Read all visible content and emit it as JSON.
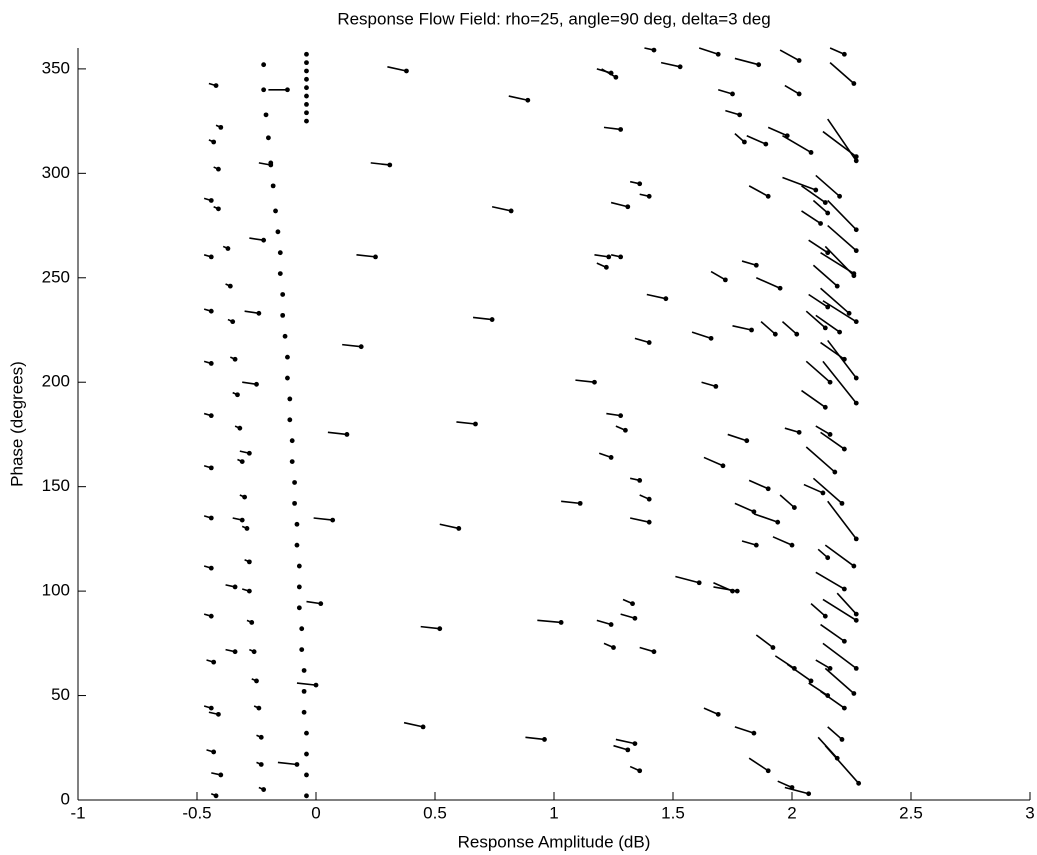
{
  "chart_data": {
    "type": "quiver",
    "title": "Response Flow Field: rho=25, angle=90 deg, delta=3 deg",
    "x_label": "Response Amplitude (dB)",
    "y_label": "Phase (degrees)",
    "xlim": [
      -1,
      3
    ],
    "xticks": [
      -1,
      -0.5,
      0,
      0.5,
      1,
      1.5,
      2,
      2.5,
      3
    ],
    "ylim": [
      0,
      360
    ],
    "yticks": [
      0,
      50,
      100,
      150,
      200,
      250,
      300,
      350
    ],
    "color": "#000000",
    "series": [
      {
        "x": [
          -0.04,
          -0.04,
          -0.04,
          -0.04,
          -0.05,
          -0.05,
          -0.05,
          -0.06,
          -0.06,
          -0.07,
          -0.07,
          -0.07,
          -0.08,
          -0.08,
          -0.09,
          -0.09,
          -0.1,
          -0.1,
          -0.11,
          -0.11,
          -0.12,
          -0.12,
          -0.13,
          -0.14,
          -0.14,
          -0.15,
          -0.15,
          -0.16,
          -0.17,
          -0.18,
          -0.19,
          -0.2,
          -0.21,
          -0.22,
          -0.22,
          -0.04,
          -0.04,
          -0.04,
          -0.04,
          -0.04,
          -0.04,
          -0.04,
          -0.04,
          -0.04
        ],
        "y": [
          2,
          12,
          22,
          32,
          42,
          52,
          62,
          72,
          82,
          92,
          102,
          112,
          122,
          132,
          142,
          152,
          162,
          172,
          182,
          192,
          202,
          212,
          222,
          232,
          242,
          252,
          262,
          272,
          282,
          294,
          305,
          317,
          328,
          340,
          352,
          325,
          329,
          333,
          337,
          341,
          345,
          349,
          353,
          357
        ]
      },
      {
        "x": [
          -0.42,
          -0.4,
          -0.43,
          -0.41,
          -0.44,
          -0.41,
          -0.37,
          -0.44,
          -0.36,
          -0.44,
          -0.35,
          -0.44,
          -0.34,
          -0.33,
          -0.44,
          -0.32,
          -0.28,
          -0.44,
          -0.31,
          -0.44,
          -0.3,
          -0.31,
          -0.29,
          -0.28,
          -0.44,
          -0.34,
          -0.28,
          -0.27,
          -0.44,
          -0.34,
          -0.26,
          -0.43,
          -0.25,
          -0.44,
          -0.41,
          -0.24,
          -0.23,
          -0.43,
          -0.23,
          -0.4,
          -0.42,
          -0.22,
          -0.24,
          -0.25,
          -0.22,
          -0.19,
          -0.12,
          -0.08,
          0,
          0.02,
          0.38,
          0.31,
          0.25,
          0.19,
          0.13,
          0.07,
          0.89,
          0.82,
          0.74,
          0.67,
          0.6,
          0.52,
          0.45,
          0.96,
          1.03,
          1.11,
          1.17,
          1.22,
          1.23,
          1.26,
          1.24,
          1.28,
          1.42,
          1.53,
          1.36,
          1.4,
          1.31,
          1.28,
          1.47,
          1.4,
          1.28,
          1.3,
          1.24,
          1.36,
          1.4,
          1.4,
          1.33,
          1.34,
          1.24,
          1.42,
          1.25,
          1.34,
          1.31,
          1.36,
          1.61,
          1.75,
          1.77,
          1.69,
          1.68,
          1.66,
          1.72,
          1.69,
          1.75,
          1.78,
          1.8,
          1.86,
          1.89,
          1.9,
          1.85,
          1.83,
          1.81,
          1.71,
          1.9,
          1.94,
          1.84,
          1.85,
          1.95,
          2.03,
          2.03,
          1.98,
          2.08,
          2.03,
          2.0,
          2.01,
          1.92,
          2.01,
          2.08,
          1.84,
          1.9,
          2.0,
          2.07,
          2.22,
          2.26,
          2.27,
          2.27,
          2.2,
          2.27,
          2.27,
          2.26,
          2.26,
          2.24,
          2.27,
          2.27,
          2.27,
          2.22,
          2.2,
          2.14,
          2.15,
          2.19,
          2.1,
          2.15,
          2.16,
          2.14,
          2.22,
          2.16,
          2.18,
          2.27,
          2.26,
          2.22,
          2.27,
          2.27,
          2.22,
          2.27,
          2.26,
          2.22,
          2.21,
          2.28,
          2.19,
          2.15,
          2.14,
          2.16,
          2.15,
          2.13,
          2.15,
          2.14,
          2.02,
          1.93,
          2.12,
          2.21
        ],
        "y": [
          342,
          322,
          315,
          302,
          287,
          283,
          264,
          260,
          246,
          234,
          229,
          209,
          211,
          194,
          184,
          178,
          166,
          159,
          162,
          135,
          145,
          134,
          130,
          114,
          111,
          102,
          100,
          85,
          88,
          71,
          71,
          66,
          57,
          44,
          41,
          44,
          30,
          23,
          17,
          12,
          2,
          5,
          233,
          199,
          268,
          304,
          340,
          17,
          55,
          94,
          349,
          304,
          260,
          217,
          175,
          134,
          335,
          282,
          230,
          180,
          130,
          82,
          35,
          29,
          85,
          142,
          200,
          255,
          260,
          346,
          348,
          321,
          359,
          351,
          295,
          289,
          284,
          260,
          240,
          219,
          184,
          177,
          164,
          153,
          144,
          133,
          94,
          87,
          84,
          71,
          73,
          27,
          24,
          14,
          104,
          100,
          100,
          41,
          198,
          221,
          249,
          357,
          338,
          328,
          315,
          352,
          314,
          289,
          256,
          225,
          172,
          160,
          149,
          133,
          138,
          122,
          245,
          354,
          338,
          318,
          310,
          176,
          122,
          140,
          73,
          63,
          57,
          32,
          14,
          6,
          3,
          357,
          343,
          306,
          308,
          289,
          273,
          263,
          251,
          252,
          233,
          229,
          202,
          190,
          211,
          224,
          286,
          262,
          246,
          292,
          281,
          200,
          188,
          168,
          175,
          157,
          125,
          112,
          101,
          89,
          86,
          76,
          63,
          51,
          44,
          29,
          8,
          20,
          50,
          88,
          63,
          116,
          147,
          236,
          226,
          223,
          223,
          276,
          142
        ],
        "u": [
          0.03,
          0.02,
          0.02,
          0.02,
          0.03,
          0.02,
          0.02,
          0.03,
          0.02,
          0.03,
          0.02,
          0.03,
          0.02,
          0.02,
          0.03,
          0.02,
          0.04,
          0.03,
          0.02,
          0.03,
          0.02,
          0.04,
          0.02,
          0.02,
          0.03,
          0.04,
          0.03,
          0.02,
          0.03,
          0.04,
          0.02,
          0.03,
          0.02,
          0.03,
          0.04,
          0.02,
          0.02,
          0.03,
          0.02,
          0.04,
          0.02,
          0.02,
          0.06,
          0.06,
          0.06,
          0.05,
          0.08,
          0.08,
          0.08,
          0.06,
          0.08,
          0.08,
          0.08,
          0.08,
          0.08,
          0.08,
          0.08,
          0.08,
          0.08,
          0.08,
          0.08,
          0.08,
          0.08,
          0.08,
          0.1,
          0.08,
          0.08,
          0.04,
          0.06,
          0.06,
          0.06,
          0.07,
          0.04,
          0.08,
          0.04,
          0.04,
          0.07,
          0.04,
          0.08,
          0.06,
          0.06,
          0.04,
          0.05,
          0.04,
          0.04,
          0.08,
          0.04,
          0.06,
          0.06,
          0.06,
          0.04,
          0.08,
          0.06,
          0.04,
          0.1,
          0.08,
          0.1,
          0.06,
          0.06,
          0.08,
          0.06,
          0.08,
          0.06,
          0.06,
          0.04,
          0.1,
          0.08,
          0.08,
          0.06,
          0.08,
          0.08,
          0.08,
          0.08,
          0.1,
          0.08,
          0.06,
          0.1,
          0.08,
          0.06,
          0.08,
          0.12,
          0.06,
          0.08,
          0.06,
          0.07,
          0.08,
          0.1,
          0.08,
          0.08,
          0.06,
          0.1,
          0.06,
          0.1,
          0.12,
          0.14,
          0.1,
          0.12,
          0.12,
          0.12,
          0.14,
          0.12,
          0.14,
          0.12,
          0.14,
          0.1,
          0.1,
          0.1,
          0.08,
          0.1,
          0.14,
          0.06,
          0.1,
          0.1,
          0.1,
          0.06,
          0.12,
          0.12,
          0.12,
          0.12,
          0.08,
          0.14,
          0.1,
          0.14,
          0.12,
          0.1,
          0.06,
          0.14,
          0.08,
          0.08,
          0.06,
          0.06,
          0.04,
          0.08,
          0.08,
          0.08,
          0.06,
          0.06,
          0.08,
          0.12
        ],
        "v": [
          -1,
          -1,
          -1,
          -1,
          -1,
          -1,
          -1,
          -1,
          -1,
          -1,
          -1,
          -1,
          -1,
          -1,
          -1,
          -1,
          -1,
          -1,
          -1,
          -1,
          -1,
          -1,
          -1,
          -1,
          -1,
          -1,
          -1,
          -1,
          -1,
          -1,
          -1,
          -1,
          -1,
          -1,
          -1,
          -1,
          -1,
          -1,
          -1,
          -1,
          -1,
          -1,
          -1,
          -1,
          -1,
          -1,
          0,
          -1,
          -1,
          -1,
          -2,
          -1,
          -1,
          -1,
          -1,
          -1,
          -2,
          -2,
          -1,
          -1,
          -2,
          -1,
          -2,
          -1,
          -1,
          -1,
          -1,
          -2,
          -1,
          -4,
          -2,
          -1,
          -1,
          -2,
          -1,
          -1,
          -2,
          -1,
          -2,
          -2,
          -1,
          -2,
          -2,
          -1,
          -2,
          -2,
          -2,
          -2,
          -2,
          -2,
          -2,
          -2,
          -2,
          -2,
          -3,
          -4,
          -2,
          -3,
          -2,
          -3,
          -4,
          -3,
          -2,
          -2,
          -4,
          -3,
          -4,
          -5,
          -2,
          -2,
          -3,
          -4,
          -4,
          -4,
          -4,
          -2,
          -5,
          -5,
          -4,
          -4,
          -8,
          -2,
          -4,
          -6,
          -6,
          -6,
          -8,
          -3,
          -6,
          -3,
          -3,
          -3,
          -10,
          -20,
          -12,
          -10,
          -14,
          -12,
          -14,
          -10,
          -12,
          -10,
          -18,
          -20,
          -8,
          -8,
          -8,
          -6,
          -10,
          -6,
          -6,
          -10,
          -8,
          -8,
          -4,
          -12,
          -18,
          -10,
          -8,
          -10,
          -10,
          -8,
          -12,
          -12,
          -8,
          -6,
          -18,
          -10,
          -6,
          -6,
          -4,
          -4,
          -4,
          -6,
          -8,
          -6,
          -6,
          -6,
          -12
        ]
      }
    ]
  }
}
